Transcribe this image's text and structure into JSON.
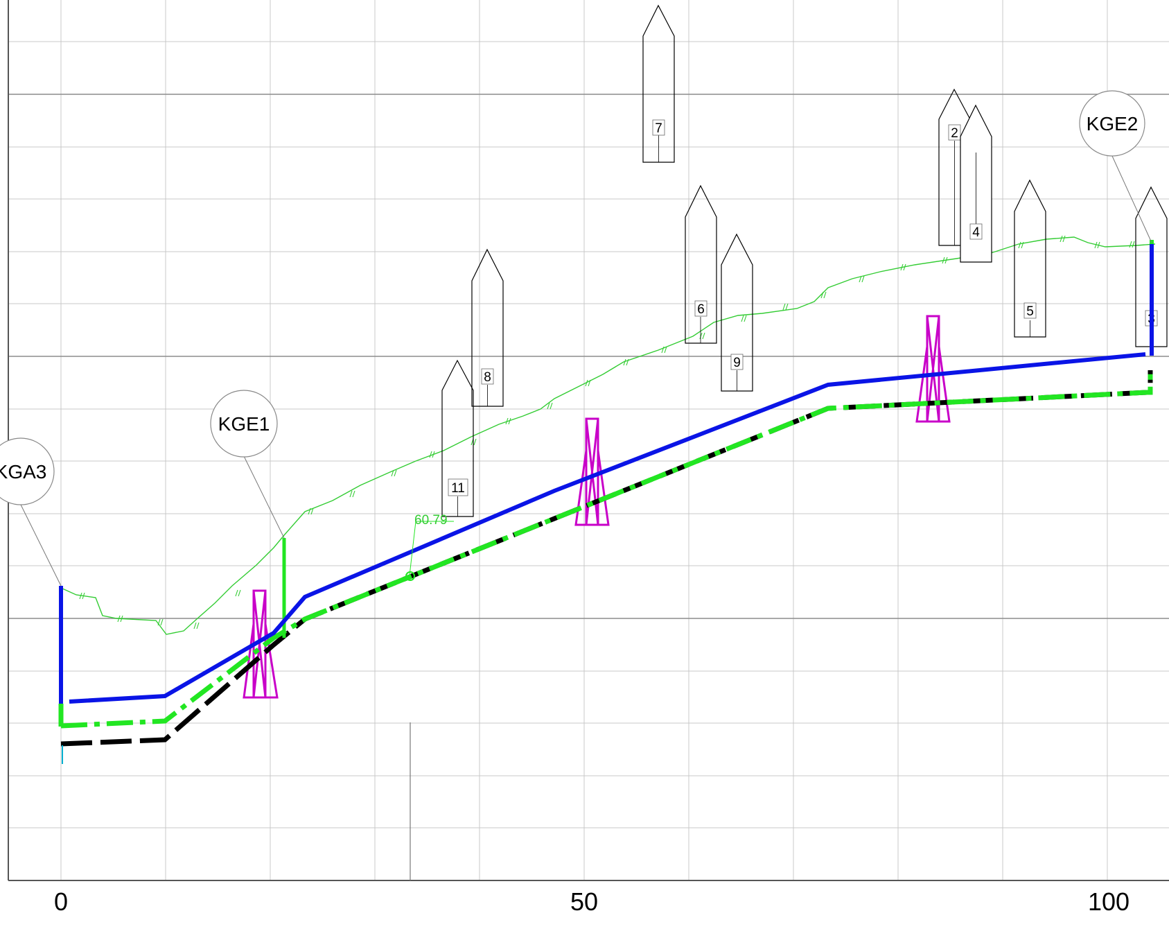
{
  "x_axis": {
    "ticks": [
      {
        "value": 0,
        "label": "0"
      },
      {
        "value": 50,
        "label": "50"
      },
      {
        "value": 100,
        "label": "100"
      }
    ]
  },
  "bubbles": [
    {
      "label": "KGA3"
    },
    {
      "label": "KGE1"
    },
    {
      "label": "KGE2"
    }
  ],
  "piles": [
    {
      "label": "7"
    },
    {
      "label": "6"
    },
    {
      "label": "9"
    },
    {
      "label": "8"
    },
    {
      "label": "11"
    },
    {
      "label": "2"
    },
    {
      "label": "4"
    },
    {
      "label": "5"
    },
    {
      "label": "3"
    }
  ],
  "elevation_label": "60.79",
  "colors": {
    "terrain": "#33cc33",
    "blue_line": "#0a14e6",
    "green_line": "#22e622",
    "black_line": "#000000",
    "tower": "#c800c8",
    "grid_minor": "#c8c8c8",
    "grid_major": "#8c8c8c"
  }
}
